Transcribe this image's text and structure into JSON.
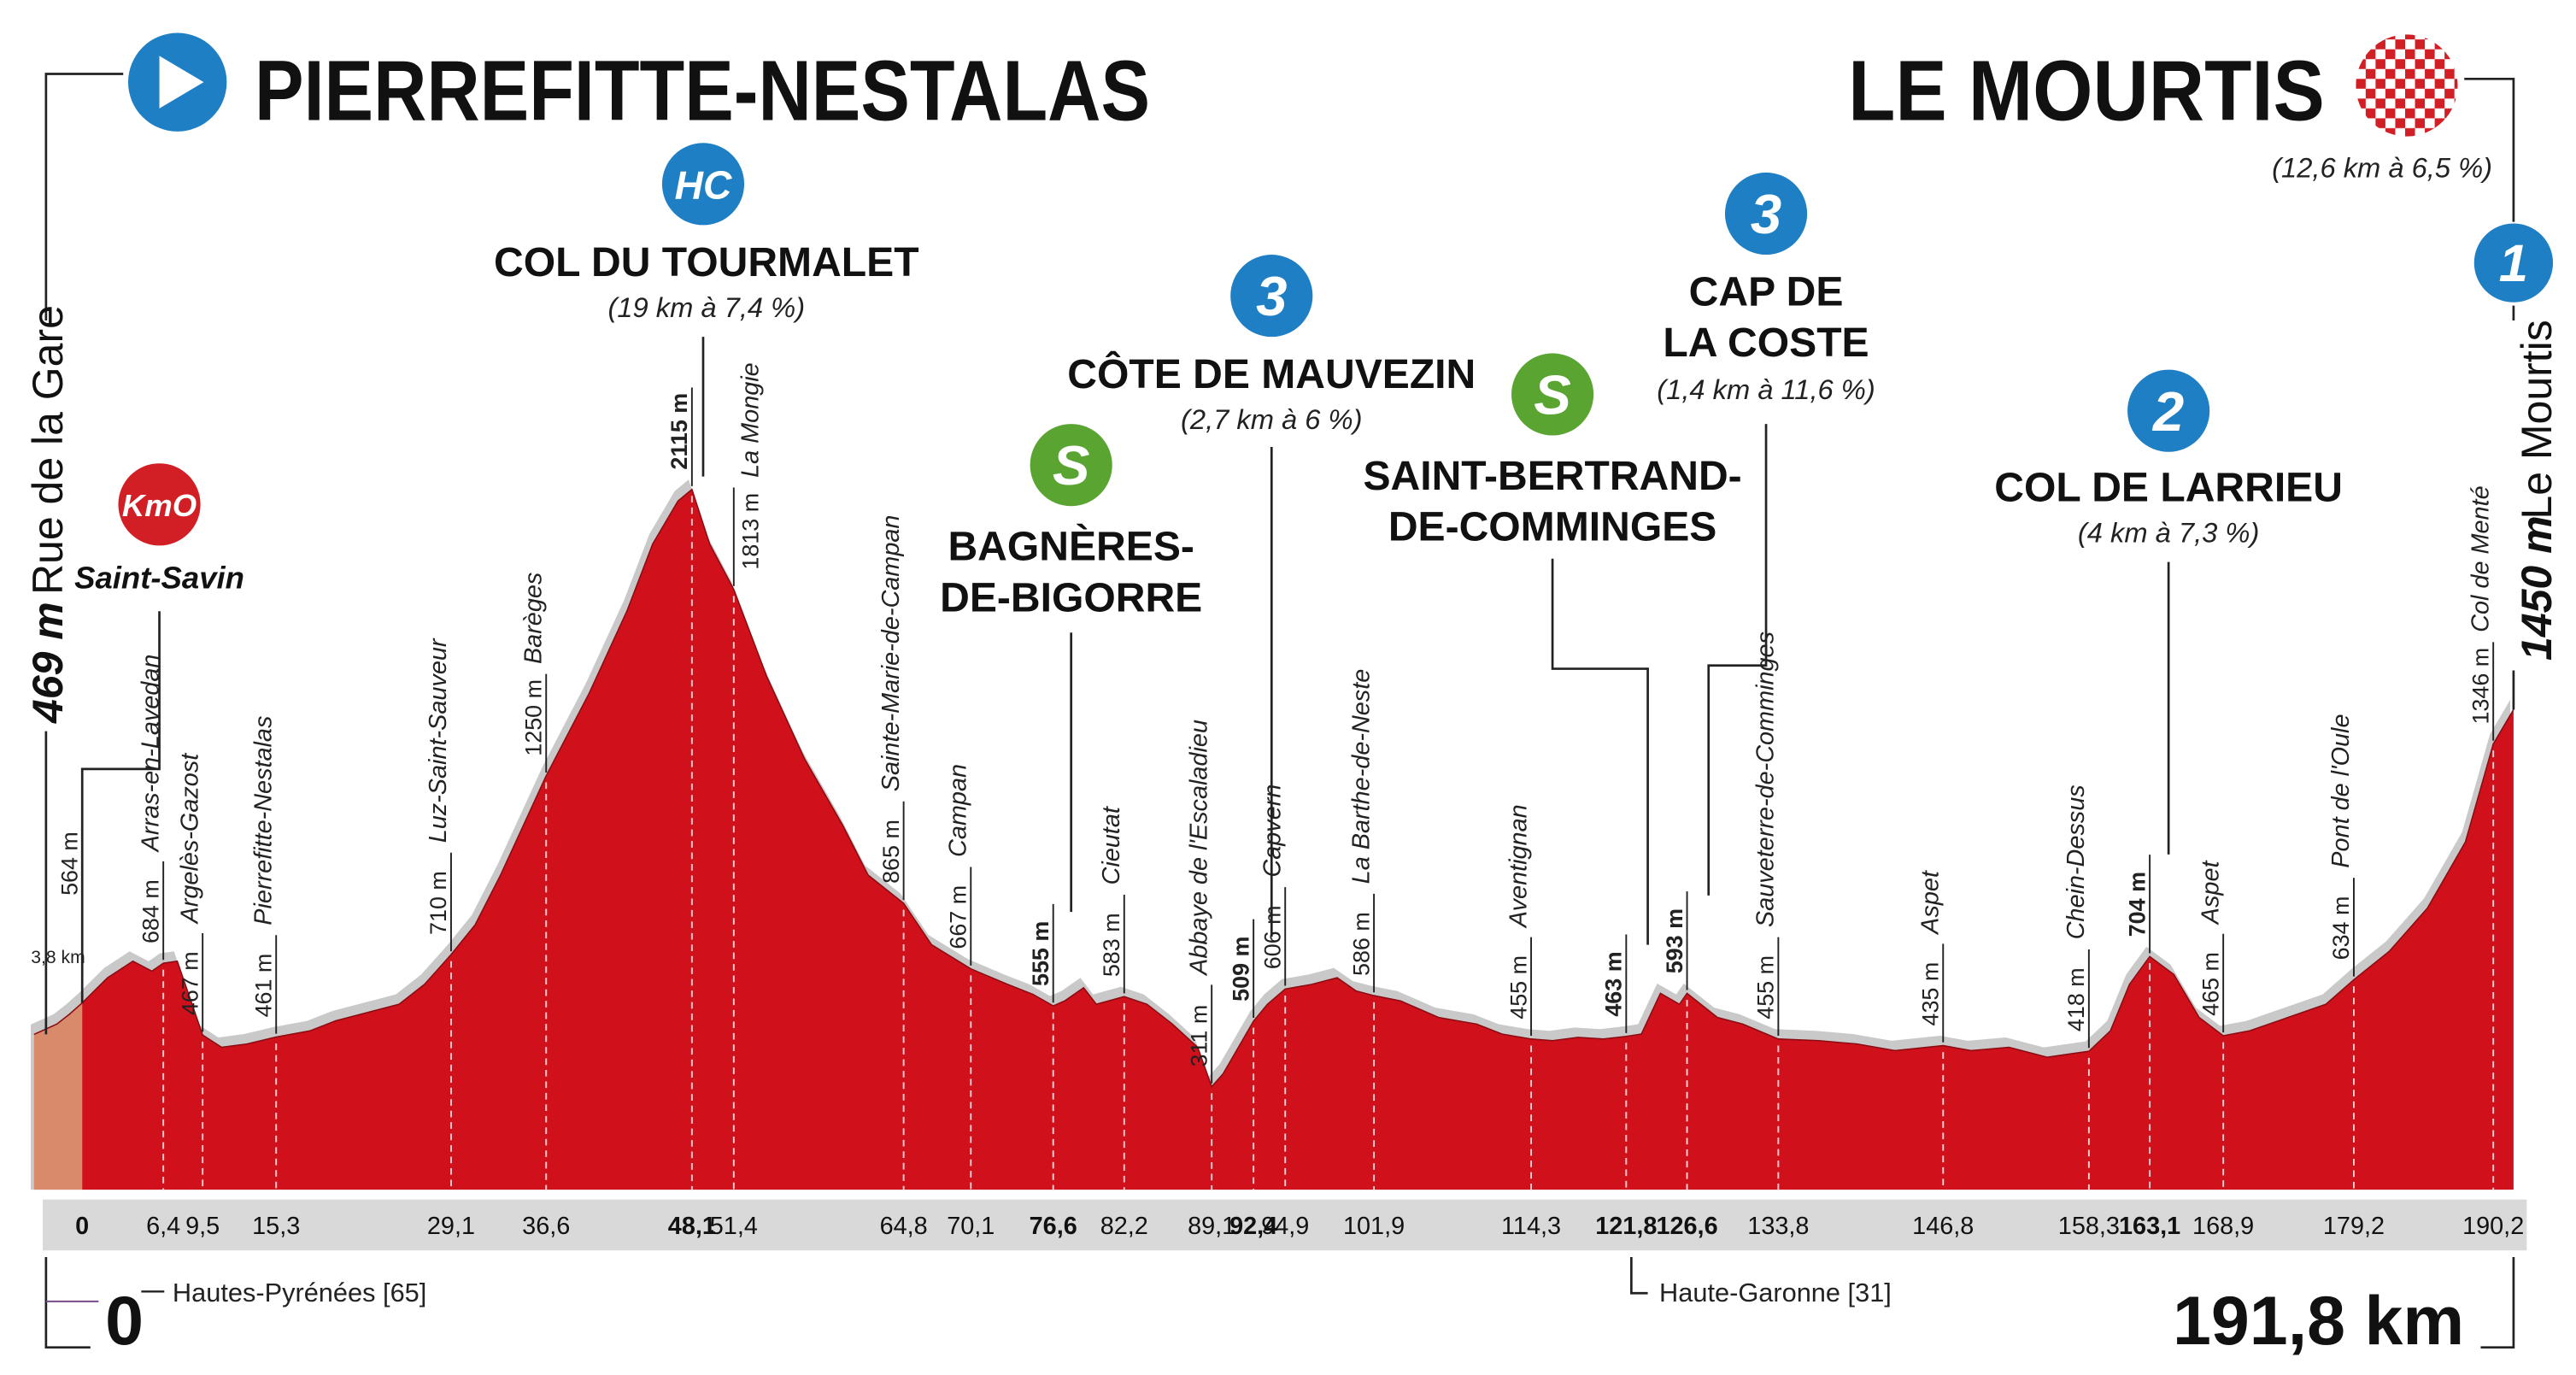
{
  "chart_data": {
    "type": "area",
    "start": {
      "name": "PIERREFITTE-NESTALAS",
      "place": "Rue de la Gare",
      "alt": {
        "value": 469,
        "label": "469 m"
      },
      "km": 0,
      "department": "Hautes-Pyrénées [65]"
    },
    "neutral": {
      "value": 3.8,
      "label": "3,8 km"
    },
    "kmo": {
      "badge": "KmO",
      "name": "Saint-Savin",
      "km": 0,
      "alt": {
        "value": 564,
        "label": "564 m"
      }
    },
    "finish": {
      "name": "LE MOURTIS",
      "category": "1",
      "detail": "(12,6 km à 6,5 %)",
      "place": "Le Mourtis",
      "alt": {
        "value": 1450,
        "label": "1450 m"
      },
      "km": {
        "value": 191.8,
        "label": "191,8 km"
      }
    },
    "department_change": "Haute-Garonne [31]",
    "climbs": [
      {
        "category": "HC",
        "name": "COL DU TOURMALET",
        "detail": "(19 km à 7,4 %)"
      },
      {
        "category": "3",
        "name": "CÔTE DE MAUVEZIN",
        "detail": "(2,7 km à 6 %)"
      },
      {
        "category": "3",
        "name": [
          "CAP DE",
          "LA COSTE"
        ],
        "detail": "(1,4 km à 11,6 %)"
      },
      {
        "category": "2",
        "name": "COL DE LARRIEU",
        "detail": "(4 km à 7,3 %)"
      }
    ],
    "sprints": [
      {
        "badge": "S",
        "name": [
          "BAGNÈRES-",
          "DE-BIGORRE"
        ]
      },
      {
        "badge": "S",
        "name": [
          "SAINT-BERTRAND-",
          "DE-COMMINGES"
        ]
      }
    ],
    "waypoints": [
      {
        "name": "Arras-en-Lavedan",
        "km": {
          "value": 6.4,
          "label": "6,4"
        },
        "alt": {
          "value": 684,
          "label": "684 m"
        }
      },
      {
        "name": "Argelès-Gazost",
        "km": {
          "value": 9.5,
          "label": "9,5"
        },
        "alt": {
          "value": 467,
          "label": "467 m"
        }
      },
      {
        "name": "Pierrefitte-Nestalas",
        "km": {
          "value": 15.3,
          "label": "15,3"
        },
        "alt": {
          "value": 461,
          "label": "461 m"
        }
      },
      {
        "name": "Luz-Saint-Sauveur",
        "km": {
          "value": 29.1,
          "label": "29,1"
        },
        "alt": {
          "value": 710,
          "label": "710 m"
        }
      },
      {
        "name": "Barèges",
        "km": {
          "value": 36.6,
          "label": "36,6"
        },
        "alt": {
          "value": 1250,
          "label": "1250 m"
        }
      },
      {
        "km": {
          "value": 48.1,
          "label": "48,1"
        },
        "alt": {
          "value": 2115,
          "label": "2115 m"
        },
        "bold": true
      },
      {
        "name": "La Mongie",
        "km": {
          "value": 51.4,
          "label": "51,4"
        },
        "alt": {
          "value": 1813,
          "label": "1813 m"
        }
      },
      {
        "name": "Sainte-Marie-de-Campan",
        "km": {
          "value": 64.8,
          "label": "64,8"
        },
        "alt": {
          "value": 865,
          "label": "865 m"
        }
      },
      {
        "name": "Campan",
        "km": {
          "value": 70.1,
          "label": "70,1"
        },
        "alt": {
          "value": 667,
          "label": "667 m"
        }
      },
      {
        "km": {
          "value": 76.6,
          "label": "76,6"
        },
        "alt": {
          "value": 555,
          "label": "555 m"
        },
        "bold": true
      },
      {
        "name": "Cieutat",
        "km": {
          "value": 82.2,
          "label": "82,2"
        },
        "alt": {
          "value": 583,
          "label": "583 m"
        }
      },
      {
        "name": "Abbaye de l'Escaladieu",
        "km": {
          "value": 89.1,
          "label": "89,1"
        },
        "alt": {
          "value": 311,
          "label": "311 m"
        }
      },
      {
        "km": {
          "value": 92.4,
          "label": "92,4"
        },
        "alt": {
          "value": 509,
          "label": "509 m"
        },
        "bold": true
      },
      {
        "name": "Capvern",
        "km": {
          "value": 94.9,
          "label": "94,9"
        },
        "alt": {
          "value": 606,
          "label": "606 m"
        }
      },
      {
        "name": "La Barthe-de-Neste",
        "km": {
          "value": 101.9,
          "label": "101,9"
        },
        "alt": {
          "value": 586,
          "label": "586 m"
        }
      },
      {
        "name": "Aventignan",
        "km": {
          "value": 114.3,
          "label": "114,3"
        },
        "alt": {
          "value": 455,
          "label": "455 m"
        }
      },
      {
        "km": {
          "value": 121.8,
          "label": "121,8"
        },
        "alt": {
          "value": 463,
          "label": "463 m"
        },
        "bold": true
      },
      {
        "km": {
          "value": 126.6,
          "label": "126,6"
        },
        "alt": {
          "value": 593,
          "label": "593 m"
        },
        "bold": true
      },
      {
        "name": "Sauveterre-de-Comminges",
        "km": {
          "value": 133.8,
          "label": "133,8"
        },
        "alt": {
          "value": 455,
          "label": "455 m"
        }
      },
      {
        "name": "Aspet",
        "km": {
          "value": 146.8,
          "label": "146,8"
        },
        "alt": {
          "value": 435,
          "label": "435 m"
        }
      },
      {
        "name": "Chein-Dessus",
        "km": {
          "value": 158.3,
          "label": "158,3"
        },
        "alt": {
          "value": 418,
          "label": "418 m"
        }
      },
      {
        "km": {
          "value": 163.1,
          "label": "163,1"
        },
        "alt": {
          "value": 704,
          "label": "704 m"
        },
        "bold": true
      },
      {
        "name": "Aspet",
        "km": {
          "value": 168.9,
          "label": "168,9"
        },
        "alt": {
          "value": 465,
          "label": "465 m"
        }
      },
      {
        "name": "Pont de l'Oule",
        "km": {
          "value": 179.2,
          "label": "179,2"
        },
        "alt": {
          "value": 634,
          "label": "634 m"
        }
      },
      {
        "name": "Col de Menté",
        "km": {
          "value": 190.2,
          "label": "190,2"
        },
        "alt": {
          "value": 1346,
          "label": "1346 m"
        }
      }
    ],
    "x": [
      -3.8,
      -2,
      -1,
      0,
      2,
      4,
      5.5,
      6.4,
      7.5,
      9.5,
      11,
      13,
      15.3,
      18,
      20,
      22,
      25,
      27,
      29.1,
      31,
      33,
      36.6,
      40,
      43,
      45,
      47,
      48.1,
      49.5,
      51.4,
      54,
      57,
      60,
      62,
      64.8,
      67,
      70.1,
      73,
      75,
      76.6,
      77.5,
      79,
      80,
      82.2,
      84,
      86,
      88,
      89.1,
      90,
      92.4,
      93.5,
      94.9,
      97,
      99,
      100.5,
      101.9,
      104,
      107,
      110,
      112,
      114.3,
      116,
      118,
      120,
      121.8,
      123,
      124.5,
      126,
      126.6,
      129,
      131,
      133.8,
      137,
      140,
      143,
      146.8,
      149,
      152,
      155,
      158.3,
      160,
      161.5,
      163.1,
      165,
      167,
      168.9,
      171,
      174,
      177,
      179.2,
      182,
      185,
      188,
      190.2,
      191.8
    ],
    "values": [
      469,
      500,
      530,
      564,
      640,
      690,
      660,
      684,
      690,
      467,
      430,
      440,
      461,
      480,
      510,
      530,
      560,
      620,
      710,
      800,
      950,
      1250,
      1500,
      1750,
      1950,
      2080,
      2115,
      1950,
      1813,
      1550,
      1300,
      1100,
      950,
      865,
      740,
      667,
      620,
      590,
      555,
      570,
      610,
      560,
      583,
      560,
      500,
      430,
      311,
      350,
      509,
      560,
      606,
      620,
      640,
      600,
      586,
      570,
      520,
      500,
      470,
      455,
      450,
      460,
      455,
      463,
      470,
      593,
      560,
      593,
      520,
      500,
      455,
      450,
      440,
      420,
      435,
      420,
      430,
      400,
      418,
      480,
      620,
      704,
      650,
      520,
      465,
      480,
      520,
      560,
      634,
      720,
      850,
      1050,
      1346,
      1450
    ],
    "xlim": [
      -3.8,
      191.8
    ],
    "ylim": [
      0,
      2200
    ],
    "color": "#d0111b",
    "prestart_color": "#d98a6a"
  }
}
